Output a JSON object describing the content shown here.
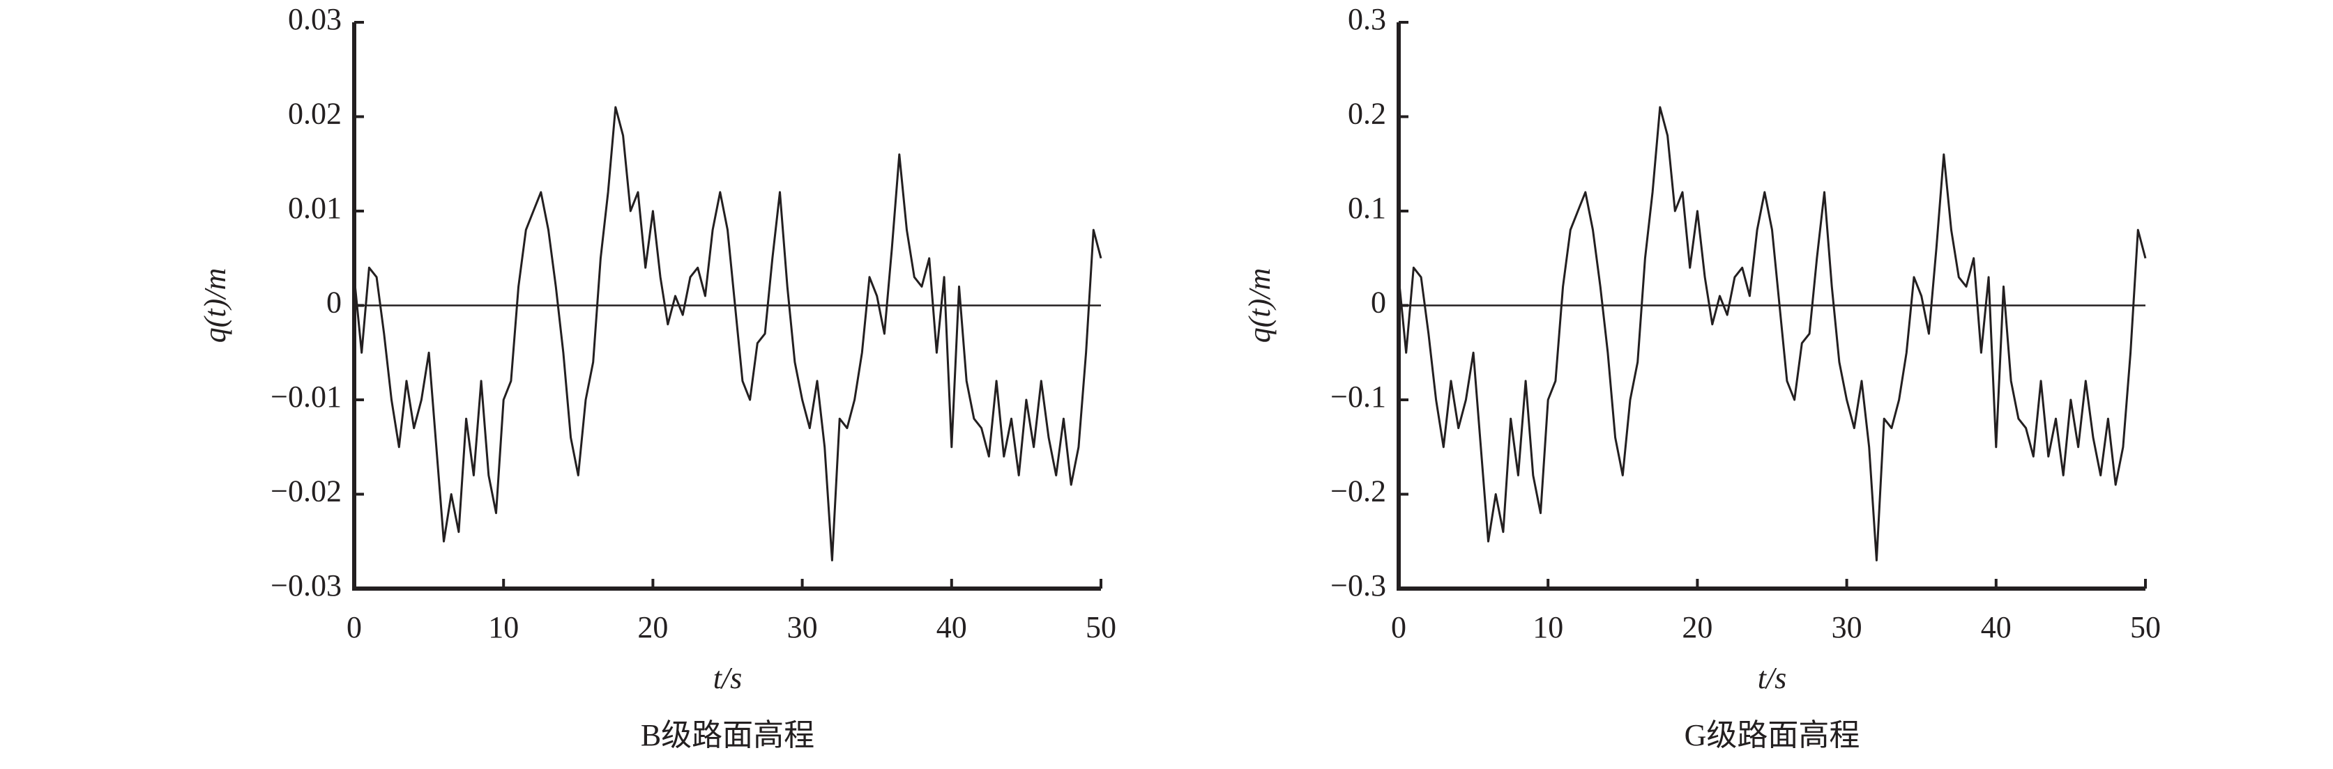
{
  "chart_data": [
    {
      "type": "line",
      "title": "B级路面高程",
      "xlabel": "t/s",
      "ylabel": "q(t)/m",
      "color": "#231f20",
      "x": [
        0,
        0.5,
        1,
        1.5,
        2,
        2.5,
        3,
        3.5,
        4,
        4.5,
        5,
        5.5,
        6,
        6.5,
        7,
        7.5,
        8,
        8.5,
        9,
        9.5,
        10,
        10.5,
        11,
        11.5,
        12,
        12.5,
        13,
        13.5,
        14,
        14.5,
        15,
        15.5,
        16,
        16.5,
        17,
        17.5,
        18,
        18.5,
        19,
        19.5,
        20,
        20.5,
        21,
        21.5,
        22,
        22.5,
        23,
        23.5,
        24,
        24.5,
        25,
        25.5,
        26,
        26.5,
        27,
        27.5,
        28,
        28.5,
        29,
        29.5,
        30,
        30.5,
        31,
        31.5,
        32,
        32.5,
        33,
        33.5,
        34,
        34.5,
        35,
        35.5,
        36,
        36.5,
        37,
        37.5,
        38,
        38.5,
        39,
        39.5,
        40,
        40.5,
        41,
        41.5,
        42,
        42.5,
        43,
        43.5,
        44,
        44.5,
        45,
        45.5,
        46,
        46.5,
        47,
        47.5,
        48,
        48.5,
        49,
        49.5,
        50
      ],
      "values": [
        0.003,
        -0.005,
        0.004,
        0.003,
        -0.003,
        -0.01,
        -0.015,
        -0.008,
        -0.013,
        -0.01,
        -0.005,
        -0.015,
        -0.025,
        -0.02,
        -0.024,
        -0.012,
        -0.018,
        -0.008,
        -0.018,
        -0.022,
        -0.01,
        -0.008,
        0.002,
        0.008,
        0.01,
        0.012,
        0.008,
        0.002,
        -0.005,
        -0.014,
        -0.018,
        -0.01,
        -0.006,
        0.005,
        0.012,
        0.021,
        0.018,
        0.01,
        0.012,
        0.004,
        0.01,
        0.003,
        -0.002,
        0.001,
        -0.001,
        0.003,
        0.004,
        0.001,
        0.008,
        0.012,
        0.008,
        0,
        -0.008,
        -0.01,
        -0.004,
        -0.003,
        0.005,
        0.012,
        0.002,
        -0.006,
        -0.01,
        -0.013,
        -0.008,
        -0.015,
        -0.027,
        -0.012,
        -0.013,
        -0.01,
        -0.005,
        0.003,
        0.001,
        -0.003,
        0.006,
        0.016,
        0.008,
        0.003,
        0.002,
        0.005,
        -0.005,
        0.003,
        -0.015,
        0.002,
        -0.008,
        -0.012,
        -0.013,
        -0.016,
        -0.008,
        -0.016,
        -0.012,
        -0.018,
        -0.01,
        -0.015,
        -0.008,
        -0.014,
        -0.018,
        -0.012,
        -0.019,
        -0.015,
        -0.005,
        0.008,
        0.005
      ],
      "hline": 0,
      "xlim": [
        0,
        50
      ],
      "xticks": [
        0,
        10,
        20,
        30,
        40,
        50
      ],
      "ylim": [
        -0.03,
        0.03
      ],
      "yticks": [
        {
          "value": -0.03,
          "label": "−0.03"
        },
        {
          "value": -0.02,
          "label": "−0.02"
        },
        {
          "value": -0.01,
          "label": "−0.01"
        },
        0,
        0.01,
        0.02,
        0.03
      ]
    },
    {
      "type": "line",
      "title": "G级路面高程",
      "xlabel": "t/s",
      "ylabel": "q(t)/m",
      "color": "#231f20",
      "x": [
        0,
        0.5,
        1,
        1.5,
        2,
        2.5,
        3,
        3.5,
        4,
        4.5,
        5,
        5.5,
        6,
        6.5,
        7,
        7.5,
        8,
        8.5,
        9,
        9.5,
        10,
        10.5,
        11,
        11.5,
        12,
        12.5,
        13,
        13.5,
        14,
        14.5,
        15,
        15.5,
        16,
        16.5,
        17,
        17.5,
        18,
        18.5,
        19,
        19.5,
        20,
        20.5,
        21,
        21.5,
        22,
        22.5,
        23,
        23.5,
        24,
        24.5,
        25,
        25.5,
        26,
        26.5,
        27,
        27.5,
        28,
        28.5,
        29,
        29.5,
        30,
        30.5,
        31,
        31.5,
        32,
        32.5,
        33,
        33.5,
        34,
        34.5,
        35,
        35.5,
        36,
        36.5,
        37,
        37.5,
        38,
        38.5,
        39,
        39.5,
        40,
        40.5,
        41,
        41.5,
        42,
        42.5,
        43,
        43.5,
        44,
        44.5,
        45,
        45.5,
        46,
        46.5,
        47,
        47.5,
        48,
        48.5,
        49,
        49.5,
        50
      ],
      "values": [
        0.03,
        -0.05,
        0.04,
        0.03,
        -0.03,
        -0.1,
        -0.15,
        -0.08,
        -0.13,
        -0.1,
        -0.05,
        -0.15,
        -0.25,
        -0.2,
        -0.24,
        -0.12,
        -0.18,
        -0.08,
        -0.18,
        -0.22,
        -0.1,
        -0.08,
        0.02,
        0.08,
        0.1,
        0.12,
        0.08,
        0.02,
        -0.05,
        -0.14,
        -0.18,
        -0.1,
        -0.06,
        0.05,
        0.12,
        0.21,
        0.18,
        0.1,
        0.12,
        0.04,
        0.1,
        0.03,
        -0.02,
        0.01,
        -0.01,
        0.03,
        0.04,
        0.01,
        0.08,
        0.12,
        0.08,
        0,
        -0.08,
        -0.1,
        -0.04,
        -0.03,
        0.05,
        0.12,
        0.02,
        -0.06,
        -0.1,
        -0.13,
        -0.08,
        -0.15,
        -0.27,
        -0.12,
        -0.13,
        -0.1,
        -0.05,
        0.03,
        0.01,
        -0.03,
        0.06,
        0.16,
        0.08,
        0.03,
        0.02,
        0.05,
        -0.05,
        0.03,
        -0.15,
        0.02,
        -0.08,
        -0.12,
        -0.13,
        -0.16,
        -0.08,
        -0.16,
        -0.12,
        -0.18,
        -0.1,
        -0.15,
        -0.08,
        -0.14,
        -0.18,
        -0.12,
        -0.19,
        -0.15,
        -0.05,
        0.08,
        0.05
      ],
      "hline": 0,
      "xlim": [
        0,
        50
      ],
      "xticks": [
        0,
        10,
        20,
        30,
        40,
        50
      ],
      "ylim": [
        -0.3,
        0.3
      ],
      "yticks": [
        {
          "value": -0.3,
          "label": "−0.3"
        },
        {
          "value": -0.2,
          "label": "−0.2"
        },
        {
          "value": -0.1,
          "label": "−0.1"
        },
        0,
        0.1,
        0.2,
        0.3
      ]
    }
  ]
}
